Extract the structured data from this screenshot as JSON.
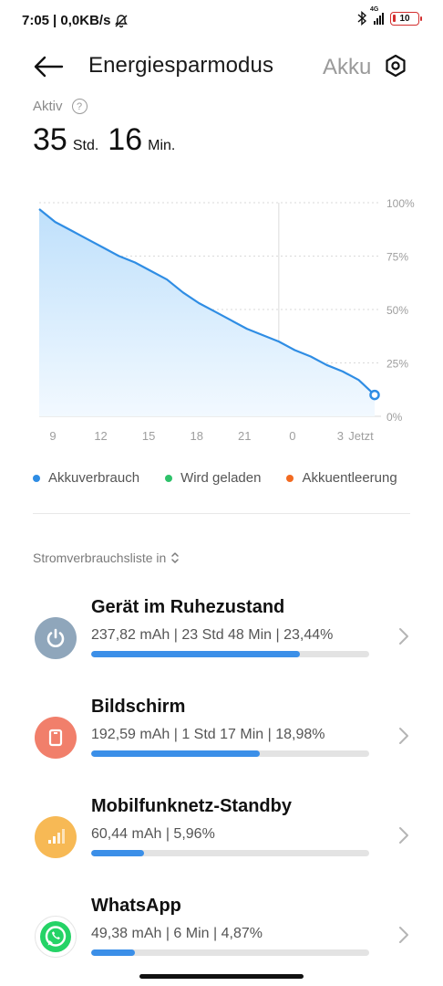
{
  "status_bar": {
    "time": "7:05",
    "speed": "| 0,0KB/s",
    "network": "4G",
    "battery": "10"
  },
  "header": {
    "title": "Energiesparmodus",
    "next_title": "Akku"
  },
  "active": {
    "label": "Aktiv",
    "hours": "35",
    "hours_unit": "Std.",
    "minutes": "16",
    "minutes_unit": "Min."
  },
  "chart_data": {
    "type": "area",
    "x": [
      9,
      10,
      11,
      12,
      13,
      14,
      15,
      16,
      17,
      18,
      19,
      20,
      21,
      22,
      23,
      0,
      1,
      2,
      3,
      4,
      5,
      6
    ],
    "series": [
      {
        "name": "Akkuverbrauch",
        "values": [
          97,
          91,
          87,
          83,
          79,
          75,
          72,
          68,
          64,
          58,
          53,
          49,
          45,
          41,
          38,
          35,
          31,
          28,
          24,
          21,
          17,
          10
        ]
      }
    ],
    "x_tick_labels": [
      "9",
      "12",
      "15",
      "18",
      "21",
      "0",
      "3",
      "Jetzt"
    ],
    "y_tick_labels": [
      "100%",
      "75%",
      "50%",
      "25%",
      "0%"
    ],
    "ylim": [
      0,
      100
    ],
    "grid": true,
    "colors": {
      "line": "#2f8de4",
      "fill_top": "#bfe0fb",
      "fill_bottom": "#f2f9ff"
    }
  },
  "legend": [
    {
      "label": "Akkuverbrauch",
      "color": "#2f8de4"
    },
    {
      "label": "Wird geladen",
      "color": "#2ec26a"
    },
    {
      "label": "Akkuentleerung",
      "color": "#f26a21"
    }
  ],
  "list_selector": {
    "label": "Stromverbrauchsliste in"
  },
  "items": [
    {
      "name": "Gerät im Ruhezustand",
      "details": "237,82 mAh | 23 Std 48 Min  | 23,44%",
      "percent": 23.44,
      "icon": "power-icon",
      "icon_color": "#8fa6bb"
    },
    {
      "name": "Bildschirm",
      "details": "192,59 mAh | 1 Std 17 Min  | 18,98%",
      "percent": 18.98,
      "icon": "screen-icon",
      "icon_color": "#f17f6b"
    },
    {
      "name": "Mobilfunknetz-Standby",
      "details": "60,44 mAh | 5,96%",
      "percent": 5.96,
      "icon": "signal-icon",
      "icon_color": "#f7b955"
    },
    {
      "name": "WhatsApp",
      "details": "49,38 mAh | 6 Min  | 4,87%",
      "percent": 4.87,
      "icon": "whatsapp-icon",
      "icon_color": "#25d366"
    }
  ]
}
